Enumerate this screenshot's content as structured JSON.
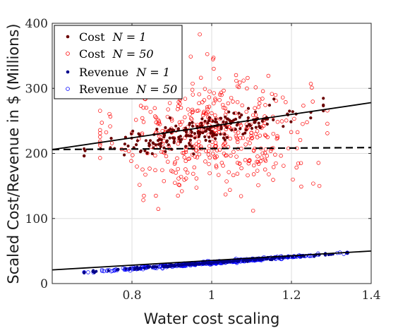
{
  "chart_data": {
    "type": "scatter",
    "xlabel": "Water cost scaling",
    "ylabel": "Scaled Cost/Revenue in $ (Millions)",
    "xlim": [
      0.6,
      1.4
    ],
    "ylim": [
      0,
      400
    ],
    "xticks": [
      0.8,
      1,
      1.2,
      1.4
    ],
    "xtick_labels": [
      "0.8",
      "1",
      "1.2",
      "1.4"
    ],
    "yticks": [
      0,
      100,
      200,
      300,
      400
    ],
    "ytick_labels": [
      "0",
      "100",
      "200",
      "300",
      "400"
    ],
    "grid": true,
    "legend": "top-left",
    "colors": {
      "cost_n1": "#6b0000",
      "cost_n50": "#ff0000",
      "revenue_n1": "#00008b",
      "revenue_n50": "#0000ff",
      "fit_line": "#000000"
    },
    "series": [
      {
        "name": "Cost",
        "name_math": "N = 1",
        "marker": "filled-dot",
        "x_range": [
          0.68,
          1.28
        ],
        "trend": {
          "intercept": 108,
          "slope": 130
        },
        "spread": 10,
        "point_count": 220
      },
      {
        "name": "Cost",
        "name_math": "N = 50",
        "marker": "open-circle",
        "x_range": [
          0.72,
          1.29
        ],
        "trend": {
          "intercept": 231,
          "slope": 0
        },
        "spread": 45,
        "point_count": 440,
        "outliers": [
          {
            "x": 0.97,
            "y": 383
          },
          {
            "x": 1.09,
            "y": 316
          },
          {
            "x": 1.08,
            "y": 312
          },
          {
            "x": 0.86,
            "y": 135
          },
          {
            "x": 0.83,
            "y": 135
          },
          {
            "x": 1.27,
            "y": 150
          }
        ]
      },
      {
        "name": "Revenue",
        "name_math": "N = 1",
        "marker": "filled-dot",
        "x_range": [
          0.68,
          1.34
        ],
        "trend": {
          "intercept": -13,
          "slope": 45
        },
        "spread": 0.8,
        "point_count": 200
      },
      {
        "name": "Revenue",
        "name_math": "N = 50",
        "marker": "open-circle",
        "x_range": [
          0.68,
          1.34
        ],
        "trend": {
          "intercept": -13,
          "slope": 45
        },
        "spread": 1.2,
        "point_count": 320
      }
    ],
    "lines": [
      {
        "style": "solid",
        "x": [
          0.6,
          1.4
        ],
        "y": [
          206,
          278
        ]
      },
      {
        "style": "dashed",
        "x": [
          0.6,
          1.4
        ],
        "y": [
          206,
          209
        ]
      },
      {
        "style": "solid",
        "x": [
          0.6,
          1.4
        ],
        "y": [
          21,
          50
        ]
      }
    ]
  }
}
